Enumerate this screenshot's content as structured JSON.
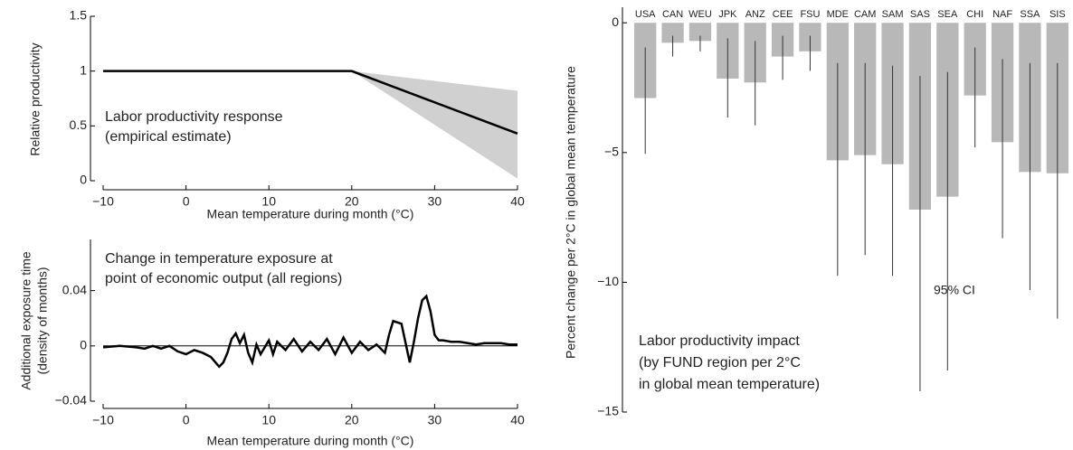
{
  "chart_data": [
    {
      "type": "line",
      "y_label": "Relative productivity",
      "x_label": "Mean temperature during month (°C)",
      "annotation": [
        "Labor productivity response",
        "(empirical estimate)"
      ],
      "x": [
        -10,
        20,
        40
      ],
      "series": [
        {
          "color": "#000000",
          "values": [
            1,
            1,
            0.43
          ],
          "band_low": [
            1,
            1,
            0.02
          ],
          "band_high": [
            1,
            1,
            0.82
          ],
          "band_color": "#d0d0d0"
        }
      ],
      "xlim": [
        -10,
        40
      ],
      "xticks": [
        {
          "value": -10,
          "label": "−10"
        },
        0,
        10,
        20,
        30,
        40
      ],
      "ylim": [
        0,
        1.5
      ],
      "yticks": [
        0,
        0.5,
        1,
        1.5
      ]
    },
    {
      "type": "line",
      "y_label": [
        "Additional exposure time",
        "(density of months)"
      ],
      "x_label": "Mean temperature during month (°C)",
      "annotation": [
        "Change in temperature exposure at",
        "point of economic output (all regions)"
      ],
      "zero_line": true,
      "x": [
        -10,
        -8,
        -6,
        -5,
        -4,
        -3,
        -2,
        -1,
        0,
        1,
        2,
        3,
        4,
        4.5,
        5,
        5.5,
        6,
        6.5,
        7,
        7.5,
        8,
        8.5,
        9,
        10,
        10.5,
        11,
        12,
        13,
        14,
        15,
        16,
        17,
        18,
        19,
        20,
        21,
        22,
        23,
        24,
        24.5,
        25,
        26,
        26.5,
        27,
        27.5,
        28,
        28.5,
        29,
        29.5,
        30,
        30.5,
        31,
        32,
        33,
        34,
        35,
        36,
        37,
        38,
        39,
        40
      ],
      "series": [
        {
          "color": "#000000",
          "values": [
            -0.001,
            0,
            -0.001,
            -0.002,
            0,
            -0.002,
            0,
            -0.004,
            -0.006,
            -0.003,
            -0.005,
            -0.008,
            -0.015,
            -0.012,
            -0.005,
            0.005,
            0.009,
            0.002,
            0.008,
            -0.005,
            -0.012,
            0.001,
            -0.006,
            0.004,
            -0.006,
            0.003,
            -0.003,
            0.005,
            -0.004,
            0.003,
            -0.003,
            0.005,
            -0.006,
            0.006,
            -0.005,
            0.003,
            -0.003,
            0.001,
            -0.005,
            0.008,
            0.018,
            0.016,
            0.002,
            -0.012,
            0.003,
            0.02,
            0.033,
            0.036,
            0.025,
            0.008,
            0.004,
            0.004,
            0.003,
            0.003,
            0.002,
            0.001,
            0.002,
            0.002,
            0.002,
            0.001,
            0.001
          ]
        }
      ],
      "xlim": [
        -10,
        40
      ],
      "xticks": [
        {
          "value": -10,
          "label": "−10"
        },
        0,
        10,
        20,
        30,
        40
      ],
      "ylim": [
        -0.04,
        0.077
      ],
      "yticks": [
        {
          "value": -0.04,
          "label": "−0.04"
        },
        0,
        0.04
      ]
    },
    {
      "type": "bar",
      "y_label": "Percent change per 2°C in global mean temperature",
      "annotation": [
        "Labor productivity impact",
        "(by FUND region per 2°C",
        "in global mean temperature)"
      ],
      "error_label": "95% CI",
      "color": "#b8b8b8",
      "categories": [
        "USA",
        "CAN",
        "WEU",
        "JPK",
        "ANZ",
        "CEE",
        "FSU",
        "MDE",
        "CAM",
        "SAM",
        "SAS",
        "SEA",
        "CHI",
        "NAF",
        "SSA",
        "SIS"
      ],
      "values": [
        -2.9,
        -0.77,
        -0.7,
        -2.15,
        -2.3,
        -1.3,
        -1.1,
        -5.3,
        -5.1,
        -5.45,
        -7.2,
        -6.7,
        -2.8,
        -4.6,
        -5.75,
        -5.8
      ],
      "error_high": [
        -0.95,
        -0.5,
        -0.5,
        -0.6,
        -0.7,
        -0.5,
        -0.5,
        -1.55,
        -1.55,
        -1.65,
        -2.05,
        -1.9,
        -0.95,
        -1.4,
        -1.55,
        -1.55
      ],
      "error_low": [
        -5.05,
        -1.3,
        -1.1,
        -3.65,
        -3.95,
        -2.2,
        -1.85,
        -9.75,
        -8.95,
        -9.75,
        -14.2,
        -13.4,
        -4.8,
        -8.3,
        -10.3,
        -11.4
      ],
      "ylim": [
        -15,
        0.6
      ],
      "yticks": [
        {
          "value": -15,
          "label": "−15"
        },
        {
          "value": -10,
          "label": "−10"
        },
        {
          "value": -5,
          "label": "−5"
        },
        0
      ]
    }
  ]
}
